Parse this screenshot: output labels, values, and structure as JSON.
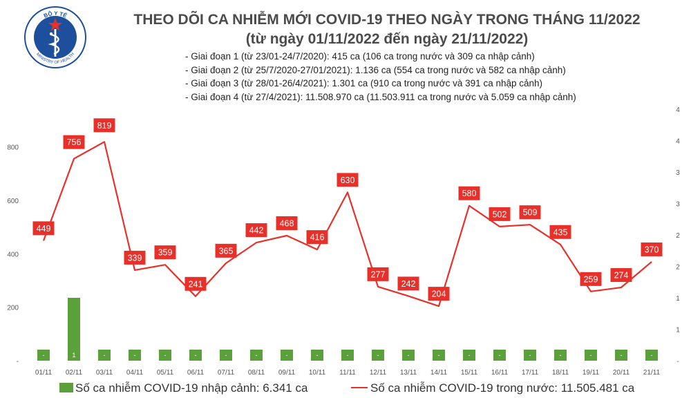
{
  "header": {
    "title": "THEO DÕI CA NHIỄM MỚI COVID-19 THEO NGÀY TRONG THÁNG 11/2022",
    "subtitle": "(từ ngày 01/11/2022 đến ngày 21/11/2022)",
    "notes": [
      "- Giai đoạn 1 (từ 23/01-24/7/2020): 415 ca (106 ca trong nước và 309 ca nhập cảnh)",
      "- Giai đoạn 2 (từ 25/7/2020-27/01/2021): 1.136 ca (554 ca trong nước và 582 ca nhập cảnh)",
      "- Giai đoạn 3 (từ 28/01-26/4/2021): 1.301 ca (910 ca trong nước và 391 ca nhập cảnh)",
      "- Giai đoạn 4 (từ 27/4/2021): 11.508.970 ca (11.503.911 ca trong nước và 5.059 ca nhập cảnh)"
    ]
  },
  "logo": {
    "text_top": "BỘ Y TẾ",
    "text_bottom": "MINISTRY OF HEALTH"
  },
  "colors": {
    "line": "#e8302a",
    "bar": "#5aa03b",
    "label_box": "#e8302a",
    "axis_text": "#555555",
    "grid": "#d9d9d9"
  },
  "legend": {
    "bar_label": "Số ca nhiễm COVID-19 nhập cảnh: 6.341 ca",
    "line_label": "Số ca nhiễm COVID-19 trong nước: 11.505.481 ca"
  },
  "chart_data": {
    "type": "bar+line",
    "categories": [
      "01/11",
      "02/11",
      "03/11",
      "04/11",
      "05/11",
      "06/11",
      "07/11",
      "08/11",
      "09/11",
      "10/11",
      "11/11",
      "12/11",
      "13/11",
      "14/11",
      "15/11",
      "16/11",
      "17/11",
      "18/11",
      "19/11",
      "20/11",
      "21/11"
    ],
    "series": [
      {
        "name": "Số ca nhiễm COVID-19 nhập cảnh: 6.341 ca",
        "type": "bar",
        "axis": "right",
        "values": [
          0,
          1,
          0,
          0,
          0,
          0,
          0,
          0,
          0,
          0,
          0,
          0,
          0,
          0,
          0,
          0,
          0,
          0,
          0,
          0,
          0
        ],
        "labels": [
          "-",
          "1",
          "-",
          "-",
          "-",
          "-",
          "-",
          "-",
          "-",
          "-",
          "-",
          "-",
          "-",
          "-",
          "-",
          "-",
          "-",
          "-",
          "-",
          "-",
          "-"
        ]
      },
      {
        "name": "Số ca nhiễm COVID-19 trong nước: 11.505.481 ca",
        "type": "line",
        "axis": "left",
        "values": [
          449,
          756,
          819,
          339,
          359,
          241,
          365,
          442,
          468,
          416,
          630,
          277,
          242,
          204,
          580,
          502,
          509,
          435,
          259,
          274,
          370
        ]
      }
    ],
    "left_axis": {
      "ticks": [
        "-",
        "200",
        "400",
        "600",
        "800"
      ],
      "tick_values": [
        0,
        200,
        400,
        600,
        800
      ],
      "ylim": [
        0,
        900
      ]
    },
    "right_axis": {
      "ticks": [
        "-",
        "1",
        "1",
        "2",
        "2",
        "3",
        "3",
        "4",
        "4"
      ],
      "ylim": [
        0,
        4
      ]
    },
    "grid": false,
    "legend_position": "bottom"
  }
}
